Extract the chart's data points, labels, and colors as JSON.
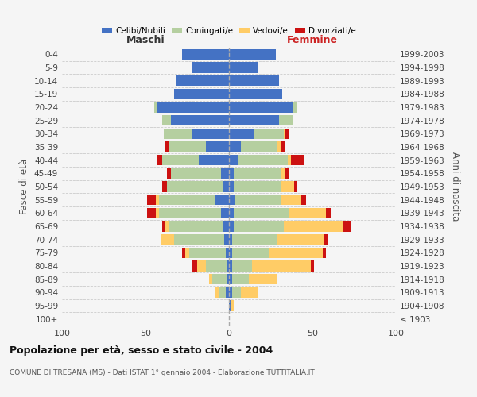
{
  "age_groups": [
    "100+",
    "95-99",
    "90-94",
    "85-89",
    "80-84",
    "75-79",
    "70-74",
    "65-69",
    "60-64",
    "55-59",
    "50-54",
    "45-49",
    "40-44",
    "35-39",
    "30-34",
    "25-29",
    "20-24",
    "15-19",
    "10-14",
    "5-9",
    "0-4"
  ],
  "birth_years": [
    "≤ 1903",
    "1904-1908",
    "1909-1913",
    "1914-1918",
    "1919-1923",
    "1924-1928",
    "1929-1933",
    "1934-1938",
    "1939-1943",
    "1944-1948",
    "1949-1953",
    "1954-1958",
    "1959-1963",
    "1964-1968",
    "1969-1973",
    "1974-1978",
    "1979-1983",
    "1984-1988",
    "1989-1993",
    "1994-1998",
    "1999-2003"
  ],
  "male": {
    "celibi": [
      0,
      0,
      2,
      1,
      1,
      2,
      3,
      4,
      5,
      8,
      4,
      5,
      18,
      14,
      22,
      35,
      43,
      33,
      32,
      22,
      28
    ],
    "coniugati": [
      0,
      0,
      4,
      9,
      13,
      22,
      30,
      32,
      37,
      34,
      33,
      30,
      22,
      22,
      17,
      5,
      2,
      0,
      0,
      0,
      0
    ],
    "vedovi": [
      0,
      0,
      2,
      2,
      5,
      2,
      8,
      2,
      2,
      2,
      0,
      0,
      0,
      0,
      0,
      0,
      0,
      0,
      0,
      0,
      0
    ],
    "divorziati": [
      0,
      0,
      0,
      0,
      3,
      2,
      0,
      2,
      5,
      5,
      3,
      2,
      3,
      2,
      0,
      0,
      0,
      0,
      0,
      0,
      0
    ]
  },
  "female": {
    "nubili": [
      0,
      1,
      2,
      2,
      2,
      2,
      2,
      3,
      3,
      4,
      3,
      3,
      5,
      7,
      15,
      30,
      38,
      32,
      30,
      17,
      28
    ],
    "coniugate": [
      0,
      0,
      5,
      10,
      12,
      22,
      27,
      30,
      33,
      27,
      28,
      28,
      30,
      22,
      18,
      8,
      3,
      0,
      0,
      0,
      0
    ],
    "vedove": [
      0,
      2,
      10,
      17,
      35,
      32,
      28,
      35,
      22,
      12,
      8,
      3,
      2,
      2,
      1,
      0,
      0,
      0,
      0,
      0,
      0
    ],
    "divorziate": [
      0,
      0,
      0,
      0,
      2,
      2,
      2,
      5,
      3,
      3,
      2,
      2,
      8,
      3,
      2,
      0,
      0,
      0,
      0,
      0,
      0
    ]
  },
  "colors": {
    "celibi": "#4472C4",
    "coniugati": "#b5cfa0",
    "vedovi": "#FFCC66",
    "divorziati": "#CC1111"
  },
  "title": "Popolazione per età, sesso e stato civile - 2004",
  "subtitle": "COMUNE DI TRESANA (MS) - Dati ISTAT 1° gennaio 2004 - Elaborazione TUTTITALIA.IT",
  "label_maschi": "Maschi",
  "label_femmine": "Femmine",
  "ylabel_left": "Fasce di età",
  "ylabel_right": "Anni di nascita",
  "legend_labels": [
    "Celibi/Nubili",
    "Coniugati/e",
    "Vedovi/e",
    "Divorziati/e"
  ],
  "xlim": 100,
  "background_color": "#f5f5f5",
  "grid_color": "#cccccc"
}
